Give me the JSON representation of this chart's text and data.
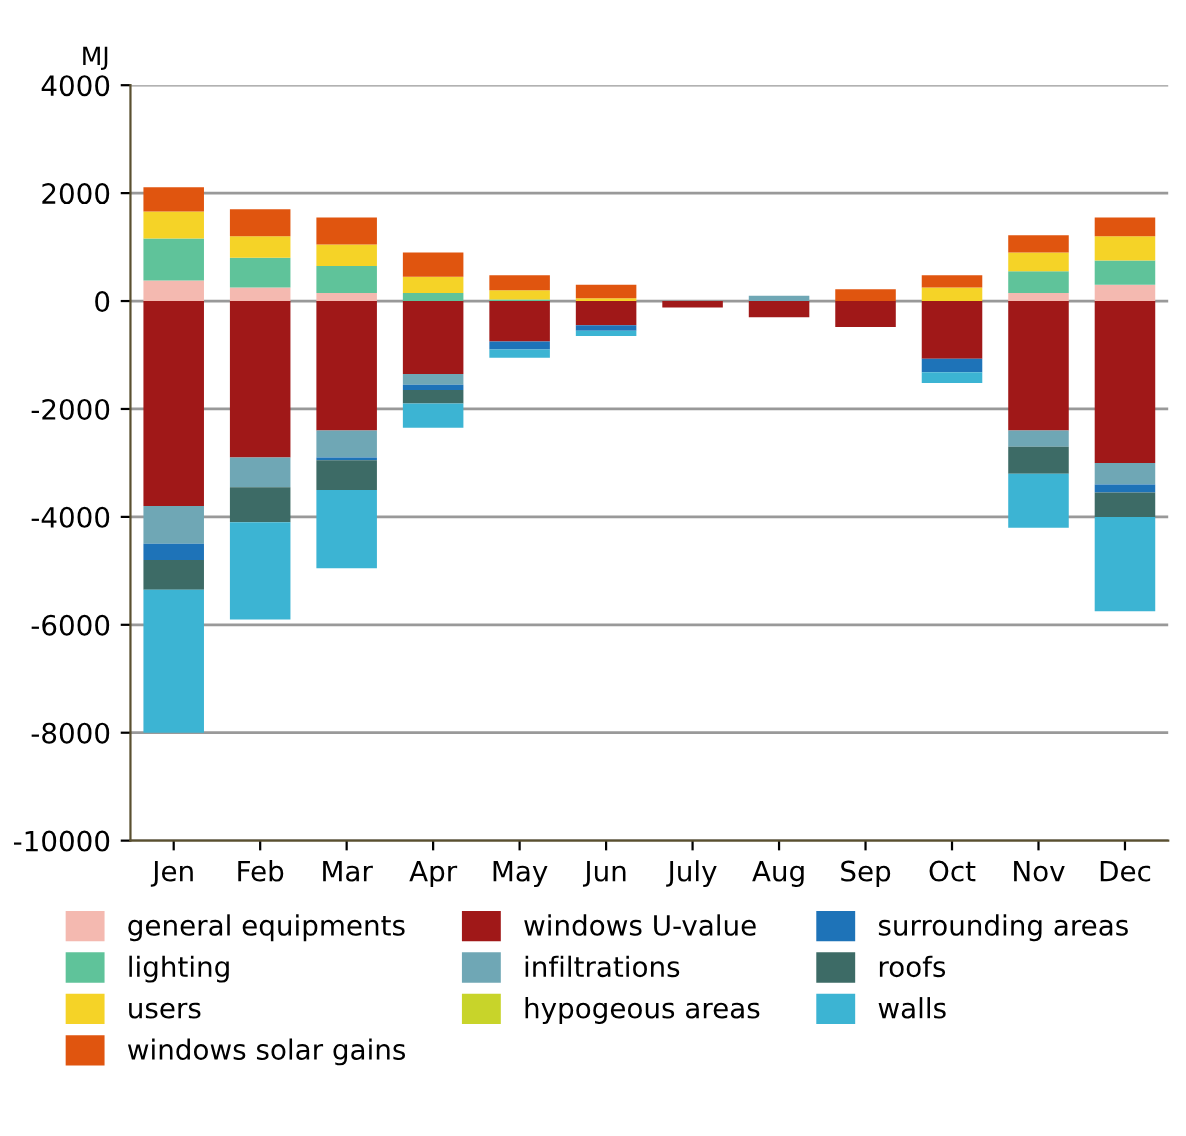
{
  "chart_data": {
    "type": "bar",
    "stacked": true,
    "ylabel": "MJ",
    "categories": [
      "Jen",
      "Feb",
      "Mar",
      "Apr",
      "May",
      "Jun",
      "July",
      "Aug",
      "Sep",
      "Oct",
      "Nov",
      "Dec"
    ],
    "series": [
      {
        "name": "general equipments",
        "color": "#f4b9b0",
        "values": [
          380,
          250,
          150,
          null,
          0,
          0,
          0,
          0,
          0,
          0,
          150,
          300
        ]
      },
      {
        "name": "lighting",
        "color": "#5fc39a",
        "values": [
          780,
          550,
          500,
          150,
          30,
          0,
          0,
          0,
          0,
          0,
          400,
          450
        ]
      },
      {
        "name": "users",
        "color": "#f5d327",
        "values": [
          500,
          400,
          400,
          300,
          170,
          50,
          0,
          0,
          0,
          250,
          350,
          450
        ]
      },
      {
        "name": "windows solar gains",
        "color": "#e0550f",
        "values": [
          450,
          500,
          500,
          450,
          280,
          250,
          0,
          0,
          220,
          230,
          320,
          350
        ]
      },
      {
        "name": "windows U-value",
        "color": "#a01818",
        "values": [
          -3800,
          -2900,
          -2400,
          -1350,
          -750,
          -450,
          -120,
          -300,
          -480,
          -1070,
          -2400,
          -3000
        ]
      },
      {
        "name": "infiltrations",
        "color": "#6fa7b5",
        "values": [
          -700,
          -550,
          -500,
          -200,
          0,
          0,
          0,
          100,
          0,
          0,
          -300,
          -400
        ]
      },
      {
        "name": "hypogeous areas",
        "color": "#c8d42a",
        "values": [
          0,
          0,
          0,
          0,
          0,
          0,
          0,
          0,
          0,
          0,
          0,
          0
        ]
      },
      {
        "name": "surrounding areas",
        "color": "#1e73b8",
        "values": [
          -300,
          0,
          -50,
          -100,
          -150,
          -100,
          0,
          0,
          0,
          -250,
          0,
          -150
        ]
      },
      {
        "name": "roofs",
        "color": "#3d6b66",
        "values": [
          -550,
          -650,
          -550,
          -250,
          0,
          0,
          0,
          0,
          0,
          0,
          -500,
          -450
        ]
      },
      {
        "name": "walls",
        "color": "#3cb4d3",
        "values": [
          -2650,
          -1800,
          -1450,
          -450,
          -150,
          -100,
          0,
          0,
          0,
          -200,
          -1000,
          -1750
        ]
      }
    ],
    "ylim": [
      -10000,
      4000
    ],
    "yticks": [
      -10000,
      -8000,
      -6000,
      -4000,
      -2000,
      0,
      2000,
      4000
    ],
    "grid": "y",
    "legend": "bottom"
  }
}
